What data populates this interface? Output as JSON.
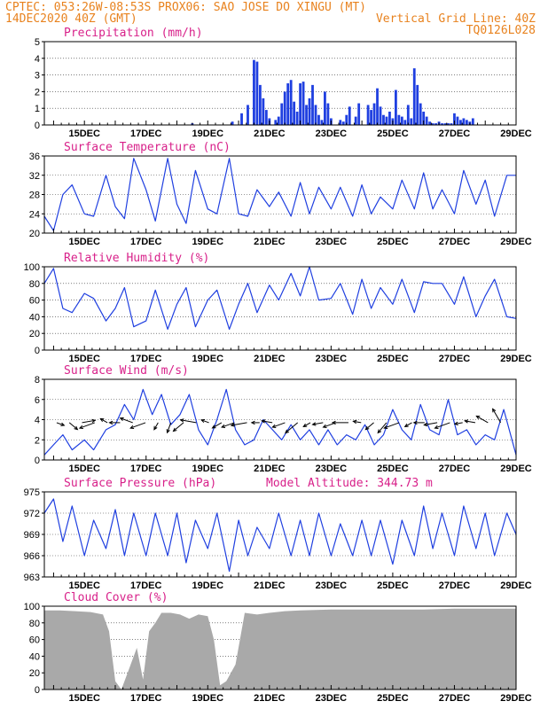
{
  "header": {
    "left_line1": "CPTEC:  053:26W-08:53S  PROX06: SAO JOSE DO XINGU (MT)",
    "left_line2": "14DEC2020 40Z (GMT)",
    "right_line2": "Vertical Grid Line: 40Z",
    "right_line3": "TQ0126L028"
  },
  "colors": {
    "header": "#e8821e",
    "title": "#d8218a",
    "series": "#1f3fe0",
    "cloud": "#a9a9a9"
  },
  "chart_data": [
    {
      "type": "bar",
      "title": "Precipitation (mm/h)",
      "ylim": [
        0,
        5
      ],
      "yticks": [
        "0",
        "1",
        "2",
        "3",
        "4",
        "5"
      ],
      "xticks": [
        "15DEC",
        "17DEC",
        "19DEC",
        "21DEC",
        "23DEC",
        "25DEC",
        "27DEC",
        "29DEC"
      ],
      "x": [
        18.5,
        19.8,
        20.1,
        20.3,
        20.5,
        20.6,
        20.7,
        20.8,
        20.9,
        21.0,
        21.2,
        21.3,
        21.4,
        21.5,
        21.6,
        21.7,
        21.8,
        21.9,
        22.0,
        22.1,
        22.2,
        22.3,
        22.4,
        22.5,
        22.6,
        22.7,
        22.8,
        22.9,
        23.0,
        23.3,
        23.4,
        23.5,
        23.6,
        23.8,
        23.9,
        24.2,
        24.3,
        24.4,
        24.5,
        24.6,
        24.7,
        24.8,
        24.9,
        25.0,
        25.1,
        25.2,
        25.3,
        25.4,
        25.5,
        25.6,
        25.7,
        25.8,
        25.9,
        26.0,
        26.1,
        26.2,
        26.3,
        26.4,
        26.5,
        26.6,
        26.7,
        26.8,
        26.9,
        27.0,
        27.1,
        27.2,
        27.3,
        27.4,
        27.5,
        27.6
      ],
      "values": [
        0.1,
        0.2,
        0.7,
        1.2,
        3.9,
        3.8,
        2.4,
        1.6,
        0.9,
        0.4,
        0.3,
        0.5,
        1.3,
        2.0,
        2.5,
        2.7,
        1.4,
        0.8,
        2.5,
        2.6,
        1.2,
        1.6,
        2.4,
        1.2,
        0.6,
        0.3,
        2.0,
        1.3,
        0.4,
        0.3,
        0.2,
        0.6,
        1.1,
        0.5,
        1.3,
        1.2,
        0.9,
        1.3,
        2.2,
        1.1,
        0.6,
        0.5,
        0.8,
        0.4,
        2.1,
        0.6,
        0.5,
        0.3,
        1.2,
        0.4,
        3.4,
        2.4,
        1.3,
        0.8,
        0.5,
        0.2,
        0.1,
        0.1,
        0.2,
        0.1,
        0.1,
        0.1,
        0.1,
        0.7,
        0.5,
        0.3,
        0.4,
        0.3,
        0.2,
        0.4
      ]
    },
    {
      "type": "line",
      "title": "Surface Temperature (nC)",
      "ylim": [
        20,
        36
      ],
      "yticks": [
        "20",
        "24",
        "28",
        "32",
        "36"
      ],
      "xticks": [
        "15DEC",
        "17DEC",
        "19DEC",
        "21DEC",
        "23DEC",
        "25DEC",
        "27DEC",
        "29DEC"
      ],
      "x": [
        13.7,
        14.0,
        14.3,
        14.6,
        15.0,
        15.3,
        15.7,
        16.0,
        16.3,
        16.6,
        17.0,
        17.3,
        17.7,
        18.0,
        18.3,
        18.6,
        19.0,
        19.3,
        19.7,
        20.0,
        20.3,
        20.6,
        21.0,
        21.3,
        21.7,
        22.0,
        22.3,
        22.6,
        23.0,
        23.3,
        23.7,
        24.0,
        24.3,
        24.6,
        25.0,
        25.3,
        25.7,
        26.0,
        26.3,
        26.6,
        27.0,
        27.3,
        27.7,
        28.0,
        28.3,
        28.7,
        29.0
      ],
      "values": [
        23.5,
        20.5,
        28.0,
        30.0,
        24.0,
        23.5,
        32.0,
        25.5,
        23.0,
        35.5,
        29.0,
        22.5,
        35.5,
        26.0,
        22.0,
        33.0,
        25.0,
        24.0,
        35.5,
        24.0,
        23.5,
        29.0,
        25.5,
        28.5,
        23.5,
        30.5,
        24.0,
        29.5,
        25.0,
        29.5,
        23.5,
        30.0,
        24.0,
        27.5,
        25.0,
        31.0,
        25.0,
        32.5,
        25.0,
        29.0,
        24.0,
        33.0,
        26.0,
        31.0,
        23.5,
        32.0,
        32.0
      ]
    },
    {
      "type": "line",
      "title": "Relative Humidity (%)",
      "ylim": [
        0,
        100
      ],
      "yticks": [
        "0",
        "20",
        "40",
        "60",
        "80",
        "100"
      ],
      "xticks": [
        "15DEC",
        "17DEC",
        "19DEC",
        "21DEC",
        "23DEC",
        "25DEC",
        "27DEC",
        "29DEC"
      ],
      "x": [
        13.7,
        14.0,
        14.3,
        14.6,
        15.0,
        15.3,
        15.7,
        16.0,
        16.3,
        16.6,
        17.0,
        17.3,
        17.7,
        18.0,
        18.3,
        18.6,
        19.0,
        19.3,
        19.7,
        20.0,
        20.3,
        20.6,
        21.0,
        21.3,
        21.7,
        22.0,
        22.3,
        22.6,
        23.0,
        23.3,
        23.7,
        24.0,
        24.3,
        24.6,
        25.0,
        25.3,
        25.7,
        26.0,
        26.3,
        26.6,
        27.0,
        27.3,
        27.7,
        28.0,
        28.3,
        28.7,
        29.0
      ],
      "values": [
        80,
        98,
        50,
        45,
        68,
        62,
        35,
        50,
        75,
        28,
        35,
        72,
        25,
        55,
        75,
        28,
        60,
        72,
        25,
        55,
        80,
        45,
        78,
        60,
        92,
        65,
        100,
        60,
        62,
        80,
        43,
        85,
        50,
        75,
        55,
        85,
        45,
        82,
        80,
        80,
        55,
        88,
        40,
        65,
        85,
        40,
        38
      ]
    },
    {
      "type": "line",
      "title": "Surface Wind (m/s)",
      "ylim": [
        0,
        8
      ],
      "yticks": [
        "0",
        "2",
        "4",
        "6",
        "8"
      ],
      "xticks": [
        "15DEC",
        "17DEC",
        "19DEC",
        "21DEC",
        "23DEC",
        "25DEC",
        "27DEC",
        "29DEC"
      ],
      "x": [
        13.7,
        14.0,
        14.3,
        14.6,
        15.0,
        15.3,
        15.7,
        16.0,
        16.3,
        16.6,
        16.9,
        17.2,
        17.5,
        17.8,
        18.1,
        18.4,
        18.7,
        19.0,
        19.3,
        19.6,
        19.9,
        20.2,
        20.5,
        20.8,
        21.1,
        21.4,
        21.7,
        22.0,
        22.3,
        22.6,
        22.9,
        23.2,
        23.5,
        23.8,
        24.1,
        24.4,
        24.7,
        25.0,
        25.3,
        25.6,
        25.9,
        26.2,
        26.5,
        26.8,
        27.1,
        27.4,
        27.7,
        28.0,
        28.3,
        28.6,
        29.0
      ],
      "values": [
        0.5,
        1.5,
        2.5,
        1.0,
        2.0,
        1.0,
        3.0,
        3.5,
        5.5,
        4.0,
        7.0,
        4.5,
        6.5,
        3.5,
        4.5,
        6.5,
        3.0,
        1.5,
        4.0,
        7.0,
        3.0,
        1.5,
        2.0,
        4.0,
        3.0,
        2.0,
        3.5,
        2.0,
        3.0,
        1.5,
        3.0,
        1.5,
        2.5,
        2.0,
        3.5,
        1.5,
        2.5,
        5.0,
        3.0,
        2.0,
        5.5,
        3.0,
        2.5,
        6.0,
        2.5,
        3.0,
        1.5,
        2.5,
        2.0,
        5.0,
        0.5
      ],
      "arrows_note": "Wind direction vectors plotted along y ~ 3.5-4"
    },
    {
      "type": "line",
      "title": "Surface Pressure (hPa)",
      "annotation": "Model Altitude: 344.73 m",
      "ylim": [
        963,
        975
      ],
      "yticks": [
        "963",
        "966",
        "969",
        "972",
        "975"
      ],
      "xticks": [
        "15DEC",
        "17DEC",
        "19DEC",
        "21DEC",
        "23DEC",
        "25DEC",
        "27DEC",
        "29DEC"
      ],
      "x": [
        13.7,
        14.0,
        14.3,
        14.6,
        15.0,
        15.3,
        15.7,
        16.0,
        16.3,
        16.6,
        17.0,
        17.3,
        17.7,
        18.0,
        18.3,
        18.6,
        19.0,
        19.3,
        19.7,
        20.0,
        20.3,
        20.6,
        21.0,
        21.3,
        21.7,
        22.0,
        22.3,
        22.6,
        23.0,
        23.3,
        23.7,
        24.0,
        24.3,
        24.6,
        25.0,
        25.3,
        25.7,
        26.0,
        26.3,
        26.6,
        27.0,
        27.3,
        27.7,
        28.0,
        28.3,
        28.7,
        29.0
      ],
      "values": [
        972,
        974,
        968,
        973,
        966,
        971,
        967,
        972.5,
        966,
        972,
        966,
        972,
        966,
        972,
        965,
        971,
        967,
        972,
        963.8,
        971,
        966,
        970,
        967,
        972,
        966,
        971,
        966,
        972,
        966,
        970.5,
        966,
        971,
        966,
        971,
        964.8,
        971,
        966,
        973,
        967,
        972,
        966,
        973,
        967,
        972,
        966,
        972,
        969
      ]
    },
    {
      "type": "area",
      "title": "Cloud Cover (%)",
      "ylim": [
        0,
        100
      ],
      "yticks": [
        "0",
        "20",
        "40",
        "60",
        "80",
        "100"
      ],
      "xticks": [
        "15DEC",
        "17DEC",
        "19DEC",
        "21DEC",
        "23DEC",
        "25DEC",
        "27DEC",
        "29DEC"
      ],
      "x": [
        13.7,
        14.2,
        14.7,
        15.2,
        15.6,
        15.8,
        16.0,
        16.2,
        16.5,
        16.7,
        16.9,
        17.1,
        17.3,
        17.5,
        17.8,
        18.1,
        18.4,
        18.7,
        19.0,
        19.2,
        19.4,
        19.6,
        19.9,
        20.2,
        20.6,
        21.0,
        21.5,
        22.0,
        23.0,
        24.0,
        25.0,
        26.0,
        27.0,
        28.0,
        29.0
      ],
      "values": [
        95,
        95,
        94,
        93,
        90,
        70,
        10,
        0,
        30,
        50,
        12,
        70,
        80,
        92,
        92,
        90,
        85,
        90,
        88,
        60,
        5,
        10,
        30,
        92,
        90,
        92,
        94,
        95,
        96,
        96,
        96,
        96,
        97,
        97,
        97
      ]
    }
  ]
}
